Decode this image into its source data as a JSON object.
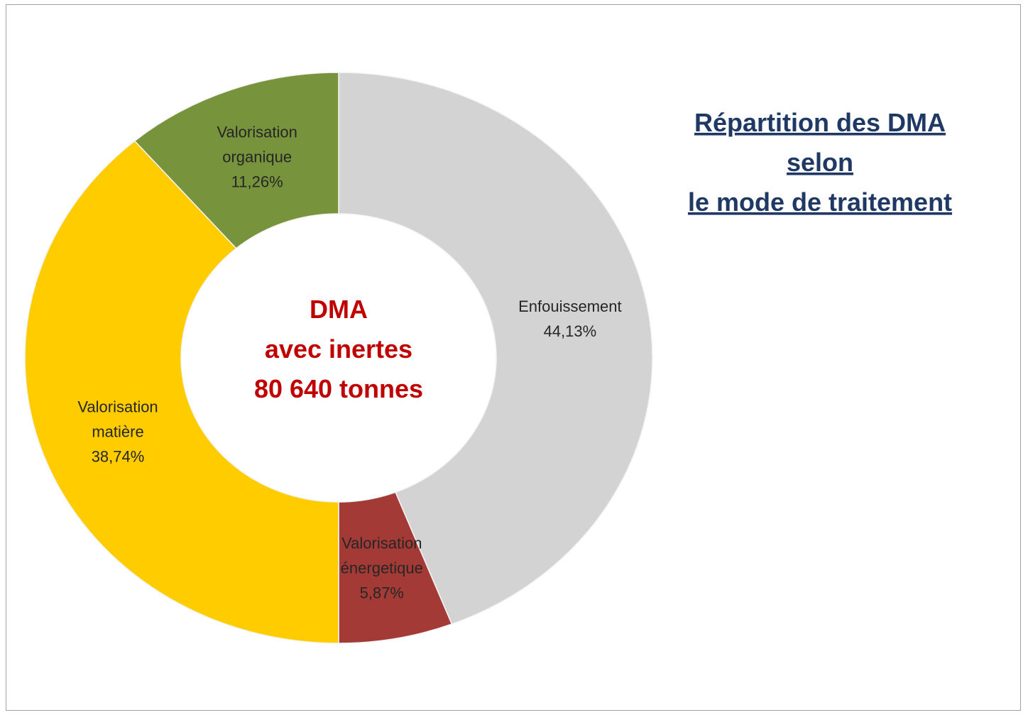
{
  "chart_data": {
    "type": "donut",
    "title": [
      "Répartition des DMA",
      "selon",
      "le mode de traitement"
    ],
    "center_text": [
      "DMA",
      "avec inertes",
      "80 640 tonnes"
    ],
    "categories": [
      "Enfouissement",
      "Valorisation énergetique",
      "Valorisation matière",
      "Valorisation organique"
    ],
    "values": [
      44.13,
      5.87,
      38.74,
      11.26
    ],
    "value_labels": [
      "44,13%",
      "5,87%",
      "38,74%",
      "11,26%"
    ],
    "colors": [
      "#d3d3d3",
      "#a33a35",
      "#ffcc00",
      "#77933c"
    ]
  }
}
